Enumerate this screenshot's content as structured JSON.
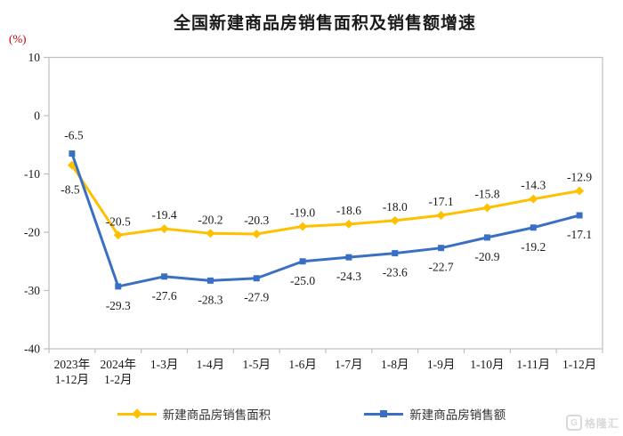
{
  "chart_data": {
    "type": "line",
    "title": "全国新建商品房销售面积及销售额增速",
    "unit_label": "(%)",
    "ylim": [
      -40,
      10
    ],
    "yticks": [
      10,
      0,
      -10,
      -20,
      -30,
      -40
    ],
    "grid": false,
    "legend_position": "bottom",
    "categories": [
      [
        "2023年",
        "1-12月"
      ],
      [
        "2024年",
        "1-2月"
      ],
      [
        "1-3月"
      ],
      [
        "1-4月"
      ],
      [
        "1-5月"
      ],
      [
        "1-6月"
      ],
      [
        "1-7月"
      ],
      [
        "1-8月"
      ],
      [
        "1-9月"
      ],
      [
        "1-10月"
      ],
      [
        "1-11月"
      ],
      [
        "1-12月"
      ]
    ],
    "series": [
      {
        "name": "新建商品房销售面积",
        "color": "#FFC000",
        "marker": "diamond",
        "label_side": "above",
        "label_overrides": {
          "0": {
            "side": "below",
            "dx": -2,
            "dy": 6
          }
        },
        "values": [
          -8.5,
          -20.5,
          -19.4,
          -20.2,
          -20.3,
          -19.0,
          -18.6,
          -18.0,
          -17.1,
          -15.8,
          -14.3,
          -12.9
        ]
      },
      {
        "name": "新建商品房销售额",
        "color": "#3A70C4",
        "marker": "square",
        "label_side": "below",
        "label_overrides": {
          "0": {
            "side": "above",
            "dx": 2,
            "dy": -5
          }
        },
        "values": [
          -6.5,
          -29.3,
          -27.6,
          -28.3,
          -27.9,
          -25.0,
          -24.3,
          -23.6,
          -22.7,
          -20.9,
          -19.2,
          -17.1
        ]
      }
    ],
    "colors": {
      "axis": "#BFBFBF",
      "tick_label": "#1A1A1A",
      "data_label": "#1A1A1A",
      "unit_label": "#C00000",
      "title": "#1A1A1A",
      "legend_text": "#333333"
    }
  },
  "watermark": {
    "logo": "G",
    "text": "格隆汇"
  }
}
